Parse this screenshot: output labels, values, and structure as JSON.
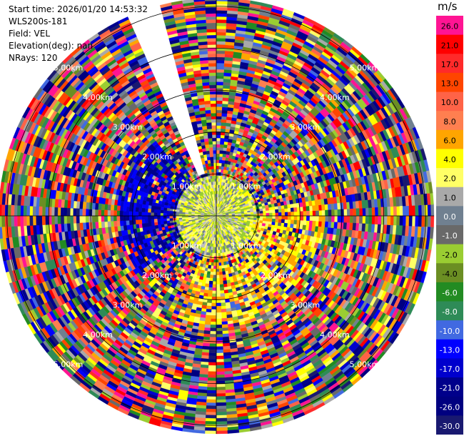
{
  "header": {
    "start_time": "Start time: 2026/01/20 14:53:32",
    "instrument": "WLS200s-181",
    "field": "Field: VEL",
    "elevation": "Elevation(deg): nan",
    "nrays": "NRays: 120"
  },
  "colorbar": {
    "unit": "m/s",
    "levels": [
      {
        "label": "26.0",
        "color": "#ff1493"
      },
      {
        "label": "21.0",
        "color": "#ff0000"
      },
      {
        "label": "17.0",
        "color": "#ff2a2a"
      },
      {
        "label": "13.0",
        "color": "#ff4500"
      },
      {
        "label": "10.0",
        "color": "#ff6347"
      },
      {
        "label": "8.0",
        "color": "#ff7f50"
      },
      {
        "label": "6.0",
        "color": "#ffa500"
      },
      {
        "label": "4.0",
        "color": "#ffff00"
      },
      {
        "label": "2.0",
        "color": "#ffff66"
      },
      {
        "label": "1.0",
        "color": "#a9a9a9"
      },
      {
        "label": "0.0",
        "color": "#708090"
      },
      {
        "label": "-1.0",
        "color": "#696969"
      },
      {
        "label": "-2.0",
        "color": "#9acd32"
      },
      {
        "label": "-4.0",
        "color": "#6b8e23"
      },
      {
        "label": "-6.0",
        "color": "#228b22"
      },
      {
        "label": "-8.0",
        "color": "#2e8b57"
      },
      {
        "label": "-10.0",
        "color": "#4169e1"
      },
      {
        "label": "-13.0",
        "color": "#0000ff"
      },
      {
        "label": "-17.0",
        "color": "#0000cd"
      },
      {
        "label": "-21.0",
        "color": "#00008b"
      },
      {
        "label": "-26.0",
        "color": "#000080"
      },
      {
        "label": "-30.0",
        "color": "#191970"
      }
    ]
  },
  "chart_data": {
    "type": "heatmap",
    "projection": "polar-ppi",
    "field": "VEL",
    "units": "m/s",
    "n_rays": 120,
    "range_ring_labels": [
      "1.00km",
      "2.00km",
      "3.00km",
      "4.00km",
      "5.00km"
    ],
    "range_rings_km": [
      1,
      2,
      3,
      4,
      5
    ],
    "max_range_km": 5.2,
    "missing_sector_azimuth_deg": [
      337,
      345
    ],
    "inner_core_km": 1.0,
    "inner_core_dominant_values": [
      4.0,
      2.0,
      0.0,
      -2.0
    ],
    "inner_west_sector_values": [
      -17.0,
      -13.0,
      -21.0
    ],
    "outer_values_note": "noisy",
    "value_range": [
      -30.0,
      30.0
    ]
  }
}
